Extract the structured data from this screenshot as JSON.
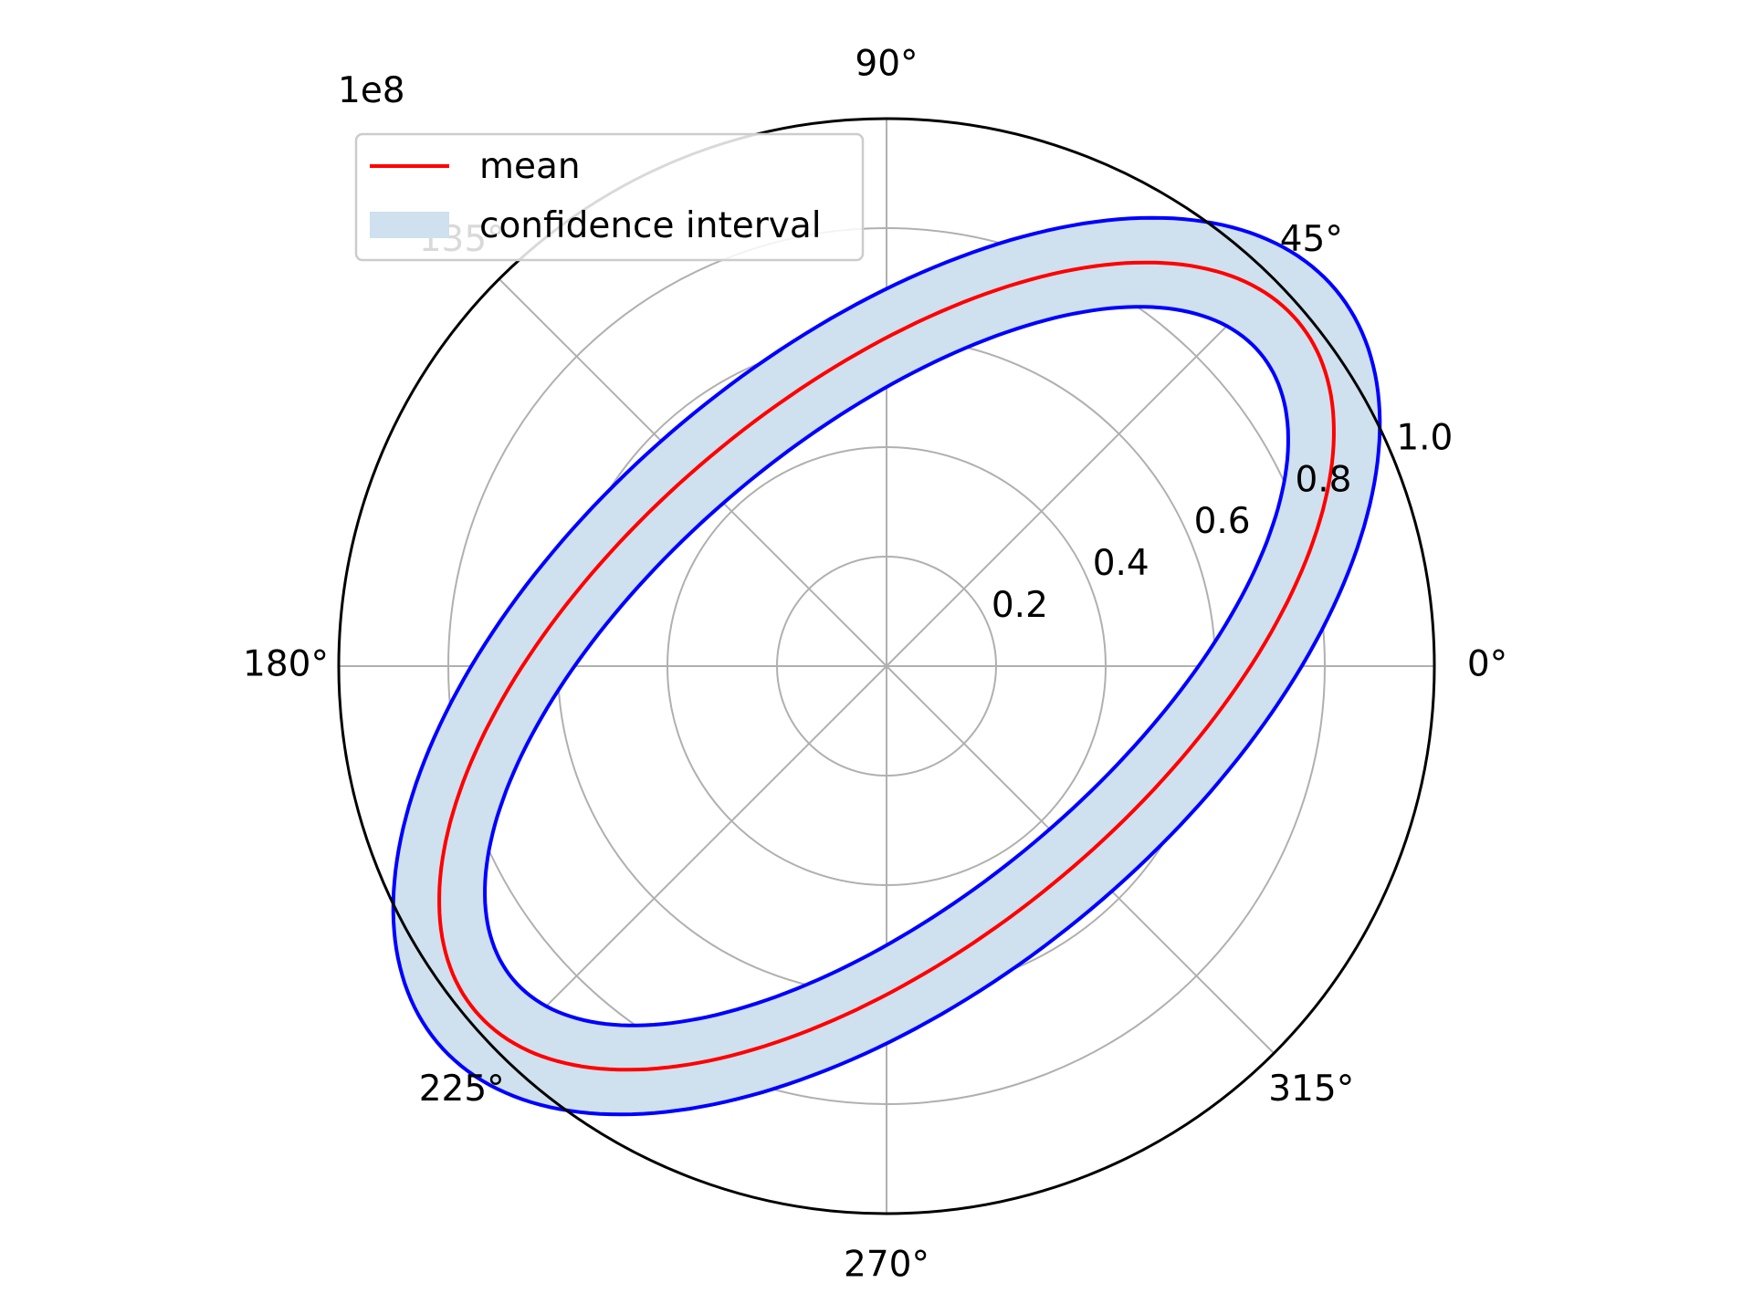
{
  "chart_data": {
    "type": "polar",
    "title": "",
    "radial_axis": {
      "range": [
        0,
        1.0
      ],
      "tick_values": [
        0.2,
        0.4,
        0.6,
        0.8,
        1.0
      ],
      "tick_labels": [
        "0.2",
        "0.4",
        "0.6",
        "0.8",
        "1.0"
      ],
      "offset_text": "1e8",
      "label_angle_deg": 22.5
    },
    "angular_axis": {
      "tick_values_deg": [
        0,
        45,
        90,
        135,
        180,
        225,
        270,
        315
      ],
      "tick_labels": [
        "0°",
        "45°",
        "90°",
        "135°",
        "180°",
        "225°",
        "270°",
        "315°"
      ]
    },
    "grid": true,
    "legend": {
      "position": "upper-left",
      "entries": [
        {
          "label": "mean",
          "kind": "line",
          "color": "#ff0000"
        },
        {
          "label": "confidence interval",
          "kind": "patch",
          "color": "#cfe0ee"
        }
      ]
    },
    "series": [
      {
        "name": "mean",
        "color": "#ff0000",
        "shape": "ellipse",
        "semi_major": 0.98,
        "semi_minor": 0.5,
        "major_axis_angle_deg": 40,
        "center": [
          0,
          0
        ]
      }
    ],
    "confidence_band": {
      "name": "confidence interval",
      "fill_color": "#cfe0ee",
      "edge_color": "#0000ff",
      "upper": {
        "semi_major": 1.07,
        "semi_minor": 0.58,
        "major_axis_angle_deg": 40
      },
      "lower": {
        "semi_major": 0.89,
        "semi_minor": 0.42,
        "major_axis_angle_deg": 40
      }
    }
  }
}
